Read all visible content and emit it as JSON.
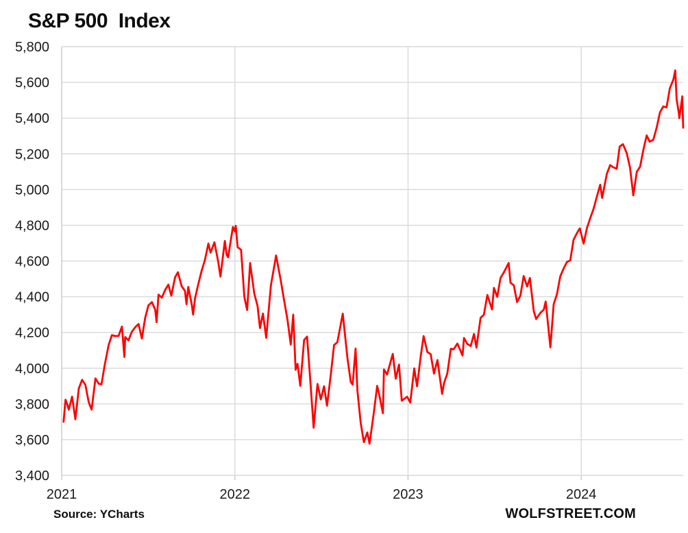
{
  "header": {
    "title": "S&P 500  Index"
  },
  "footer": {
    "source": "Source: YCharts",
    "watermark": "WOLFSTREET.COM"
  },
  "chart_data": {
    "type": "line",
    "title": "S&P 500  Index",
    "xlabel": "",
    "ylabel": "",
    "grid": true,
    "legend": false,
    "x_axis": {
      "range": [
        2021.0,
        2024.589
      ],
      "ticks": [
        {
          "value": 2021,
          "label": "2021"
        },
        {
          "value": 2022,
          "label": "2022"
        },
        {
          "value": 2023,
          "label": "2023"
        },
        {
          "value": 2024,
          "label": "2024"
        }
      ]
    },
    "y_axis": {
      "range": [
        3400,
        5800
      ],
      "ticks": [
        {
          "value": 3400,
          "label": "3,400"
        },
        {
          "value": 3600,
          "label": "3,600"
        },
        {
          "value": 3800,
          "label": "3,800"
        },
        {
          "value": 4000,
          "label": "4,000"
        },
        {
          "value": 4200,
          "label": "4,200"
        },
        {
          "value": 4400,
          "label": "4,400"
        },
        {
          "value": 4600,
          "label": "4,600"
        },
        {
          "value": 4800,
          "label": "4,800"
        },
        {
          "value": 5000,
          "label": "5,000"
        },
        {
          "value": 5200,
          "label": "5,200"
        },
        {
          "value": 5400,
          "label": "5,400"
        },
        {
          "value": 5600,
          "label": "5,600"
        },
        {
          "value": 5800,
          "label": "5,800"
        }
      ]
    },
    "style": {
      "line_color": "#fe0000",
      "line_width": 2.8,
      "grid_color": "#d9d9d9",
      "border_color": "#c9c9c9",
      "tick_color": "#c9c9c9",
      "text_color": "#1a1a1a",
      "background": "#ffffff"
    },
    "series": [
      {
        "name": "S&P 500 Index",
        "points": [
          [
            2021.011,
            3700
          ],
          [
            2021.022,
            3824
          ],
          [
            2021.033,
            3796
          ],
          [
            2021.041,
            3768
          ],
          [
            2021.06,
            3841
          ],
          [
            2021.079,
            3714
          ],
          [
            2021.099,
            3887
          ],
          [
            2021.118,
            3935
          ],
          [
            2021.137,
            3907
          ],
          [
            2021.156,
            3811
          ],
          [
            2021.173,
            3768
          ],
          [
            2021.195,
            3943
          ],
          [
            2021.214,
            3913
          ],
          [
            2021.23,
            3910
          ],
          [
            2021.249,
            4020
          ],
          [
            2021.271,
            4129
          ],
          [
            2021.29,
            4185
          ],
          [
            2021.309,
            4180
          ],
          [
            2021.329,
            4181
          ],
          [
            2021.348,
            4233
          ],
          [
            2021.362,
            4063
          ],
          [
            2021.367,
            4174
          ],
          [
            2021.386,
            4156
          ],
          [
            2021.405,
            4204
          ],
          [
            2021.425,
            4230
          ],
          [
            2021.444,
            4247
          ],
          [
            2021.463,
            4166
          ],
          [
            2021.482,
            4281
          ],
          [
            2021.501,
            4352
          ],
          [
            2021.521,
            4370
          ],
          [
            2021.54,
            4327
          ],
          [
            2021.548,
            4258
          ],
          [
            2021.559,
            4412
          ],
          [
            2021.578,
            4395
          ],
          [
            2021.597,
            4437
          ],
          [
            2021.616,
            4468
          ],
          [
            2021.633,
            4406
          ],
          [
            2021.655,
            4509
          ],
          [
            2021.671,
            4537
          ],
          [
            2021.693,
            4459
          ],
          [
            2021.712,
            4433
          ],
          [
            2021.721,
            4358
          ],
          [
            2021.731,
            4455
          ],
          [
            2021.751,
            4357
          ],
          [
            2021.759,
            4300
          ],
          [
            2021.77,
            4391
          ],
          [
            2021.789,
            4471
          ],
          [
            2021.808,
            4545
          ],
          [
            2021.827,
            4605
          ],
          [
            2021.847,
            4698
          ],
          [
            2021.86,
            4647
          ],
          [
            2021.882,
            4705
          ],
          [
            2021.904,
            4595
          ],
          [
            2021.917,
            4513
          ],
          [
            2021.942,
            4712
          ],
          [
            2021.953,
            4634
          ],
          [
            2021.961,
            4621
          ],
          [
            2021.989,
            4791
          ],
          [
            2022.0,
            4766
          ],
          [
            2022.005,
            4797
          ],
          [
            2022.016,
            4677
          ],
          [
            2022.036,
            4663
          ],
          [
            2022.055,
            4398
          ],
          [
            2022.071,
            4326
          ],
          [
            2022.088,
            4589
          ],
          [
            2022.112,
            4419
          ],
          [
            2022.131,
            4349
          ],
          [
            2022.145,
            4225
          ],
          [
            2022.162,
            4306
          ],
          [
            2022.181,
            4170
          ],
          [
            2022.208,
            4463
          ],
          [
            2022.238,
            4631
          ],
          [
            2022.266,
            4488
          ],
          [
            2022.282,
            4393
          ],
          [
            2022.304,
            4272
          ],
          [
            2022.323,
            4132
          ],
          [
            2022.337,
            4300
          ],
          [
            2022.351,
            3991
          ],
          [
            2022.362,
            4024
          ],
          [
            2022.378,
            3901
          ],
          [
            2022.4,
            4158
          ],
          [
            2022.417,
            4177
          ],
          [
            2022.438,
            3901
          ],
          [
            2022.455,
            3667
          ],
          [
            2022.477,
            3912
          ],
          [
            2022.496,
            3825
          ],
          [
            2022.515,
            3899
          ],
          [
            2022.532,
            3790
          ],
          [
            2022.554,
            3962
          ],
          [
            2022.573,
            4130
          ],
          [
            2022.592,
            4145
          ],
          [
            2022.623,
            4305
          ],
          [
            2022.65,
            4058
          ],
          [
            2022.669,
            3924
          ],
          [
            2022.68,
            3908
          ],
          [
            2022.697,
            4110
          ],
          [
            2022.708,
            3873
          ],
          [
            2022.727,
            3693
          ],
          [
            2022.745,
            3586
          ],
          [
            2022.765,
            3640
          ],
          [
            2022.778,
            3577
          ],
          [
            2022.803,
            3753
          ],
          [
            2022.822,
            3901
          ],
          [
            2022.833,
            3856
          ],
          [
            2022.855,
            3748
          ],
          [
            2022.861,
            3993
          ],
          [
            2022.879,
            3965
          ],
          [
            2022.912,
            4080
          ],
          [
            2022.929,
            3941
          ],
          [
            2022.948,
            4020
          ],
          [
            2022.964,
            3818
          ],
          [
            2022.995,
            3840
          ],
          [
            2023.013,
            3808
          ],
          [
            2023.036,
            3999
          ],
          [
            2023.052,
            3899
          ],
          [
            2023.074,
            4071
          ],
          [
            2023.09,
            4180
          ],
          [
            2023.112,
            4090
          ],
          [
            2023.131,
            4079
          ],
          [
            2023.15,
            3970
          ],
          [
            2023.17,
            4046
          ],
          [
            2023.197,
            3856
          ],
          [
            2023.208,
            3917
          ],
          [
            2023.227,
            3971
          ],
          [
            2023.247,
            4109
          ],
          [
            2023.263,
            4105
          ],
          [
            2023.285,
            4138
          ],
          [
            2023.315,
            4071
          ],
          [
            2023.323,
            4169
          ],
          [
            2023.342,
            4136
          ],
          [
            2023.362,
            4124
          ],
          [
            2023.381,
            4192
          ],
          [
            2023.395,
            4115
          ],
          [
            2023.419,
            4282
          ],
          [
            2023.438,
            4299
          ],
          [
            2023.458,
            4410
          ],
          [
            2023.485,
            4329
          ],
          [
            2023.496,
            4450
          ],
          [
            2023.515,
            4399
          ],
          [
            2023.534,
            4505
          ],
          [
            2023.553,
            4536
          ],
          [
            2023.581,
            4589
          ],
          [
            2023.592,
            4478
          ],
          [
            2023.611,
            4464
          ],
          [
            2023.63,
            4370
          ],
          [
            2023.649,
            4406
          ],
          [
            2023.668,
            4516
          ],
          [
            2023.688,
            4457
          ],
          [
            2023.704,
            4505
          ],
          [
            2023.726,
            4320
          ],
          [
            2023.74,
            4275
          ],
          [
            2023.764,
            4309
          ],
          [
            2023.784,
            4328
          ],
          [
            2023.795,
            4373
          ],
          [
            2023.822,
            4117
          ],
          [
            2023.841,
            4358
          ],
          [
            2023.86,
            4415
          ],
          [
            2023.879,
            4514
          ],
          [
            2023.899,
            4559
          ],
          [
            2023.918,
            4595
          ],
          [
            2023.937,
            4604
          ],
          [
            2023.956,
            4719
          ],
          [
            2023.975,
            4755
          ],
          [
            2023.992,
            4783
          ],
          [
            2024.014,
            4697
          ],
          [
            2024.033,
            4784
          ],
          [
            2024.052,
            4840
          ],
          [
            2024.071,
            4891
          ],
          [
            2024.09,
            4959
          ],
          [
            2024.11,
            5027
          ],
          [
            2024.121,
            4953
          ],
          [
            2024.148,
            5089
          ],
          [
            2024.167,
            5137
          ],
          [
            2024.186,
            5124
          ],
          [
            2024.205,
            5117
          ],
          [
            2024.222,
            5241
          ],
          [
            2024.241,
            5254
          ],
          [
            2024.263,
            5204
          ],
          [
            2024.282,
            5123
          ],
          [
            2024.301,
            4967
          ],
          [
            2024.321,
            5100
          ],
          [
            2024.34,
            5128
          ],
          [
            2024.359,
            5223
          ],
          [
            2024.378,
            5303
          ],
          [
            2024.395,
            5268
          ],
          [
            2024.416,
            5278
          ],
          [
            2024.436,
            5347
          ],
          [
            2024.455,
            5432
          ],
          [
            2024.474,
            5465
          ],
          [
            2024.493,
            5460
          ],
          [
            2024.512,
            5567
          ],
          [
            2024.532,
            5615
          ],
          [
            2024.543,
            5667
          ],
          [
            2024.551,
            5505
          ],
          [
            2024.564,
            5427
          ],
          [
            2024.567,
            5399
          ],
          [
            2024.584,
            5522
          ],
          [
            2024.586,
            5446
          ],
          [
            2024.589,
            5346
          ]
        ]
      }
    ]
  }
}
